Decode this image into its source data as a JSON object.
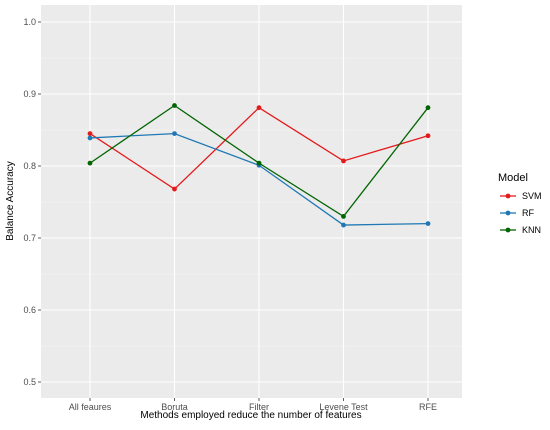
{
  "chart_data": {
    "type": "line",
    "title": "",
    "xlabel": "Methods employed reduce the number of features",
    "ylabel": "Balance Accuracy",
    "categories": [
      "All feaures",
      "Boruta",
      "Filter",
      "Levene Test",
      "RFE"
    ],
    "ylim": [
      0.5,
      1.0
    ],
    "yticks": [
      0.5,
      0.6,
      0.7,
      0.8,
      0.9,
      1.0
    ],
    "ytick_labels": [
      "0.5",
      "0.6",
      "0.7",
      "0.8",
      "0.9",
      "1.0"
    ],
    "grid": true,
    "legend_title": "Model",
    "legend_position": "right",
    "series": [
      {
        "name": "SVM",
        "color": "#e41a1c",
        "values": [
          0.845,
          0.768,
          0.881,
          0.807,
          0.842
        ]
      },
      {
        "name": "RF",
        "color": "#1f78b4",
        "values": [
          0.839,
          0.845,
          0.801,
          0.718,
          0.72
        ]
      },
      {
        "name": "KNN",
        "color": "#006400",
        "values": [
          0.804,
          0.884,
          0.804,
          0.73,
          0.881
        ]
      }
    ]
  }
}
